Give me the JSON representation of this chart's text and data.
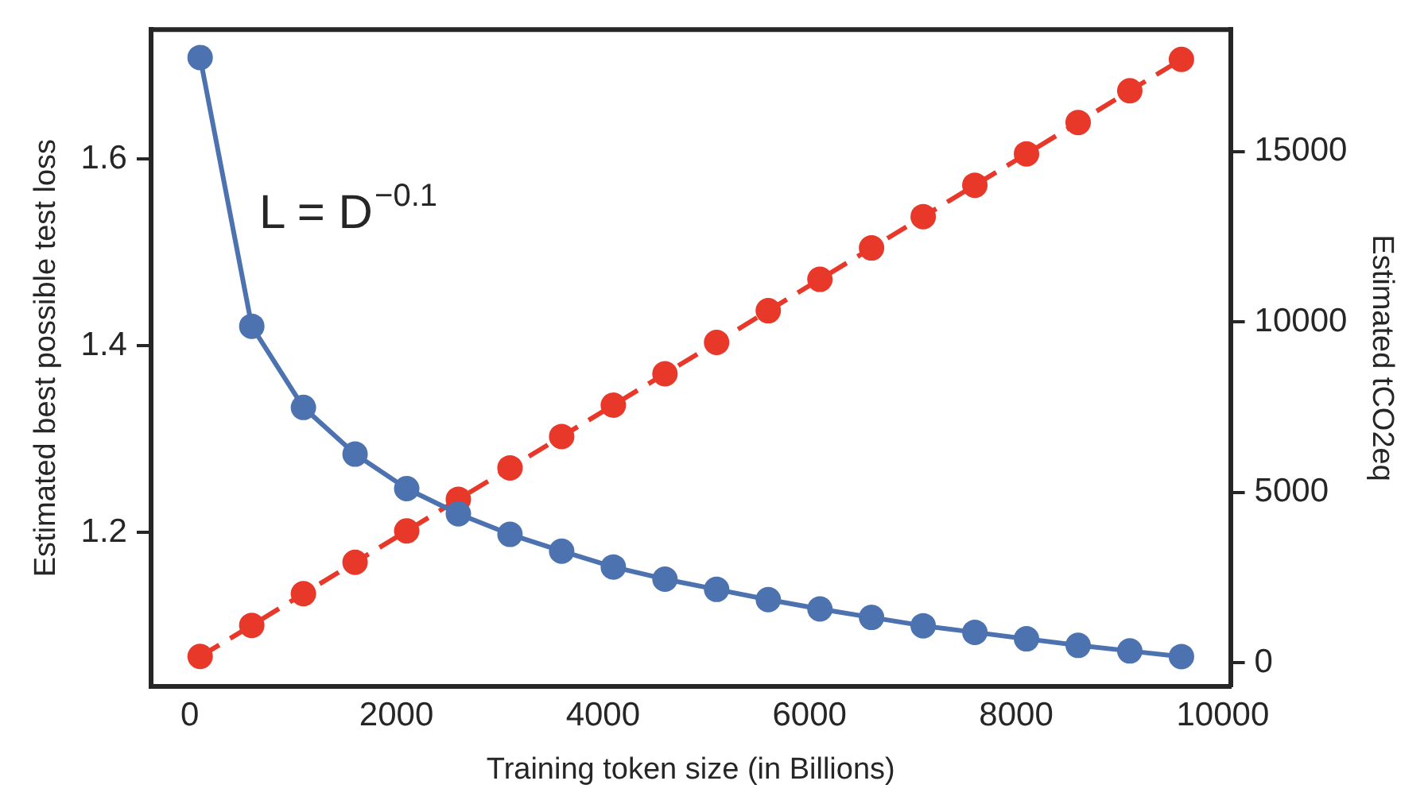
{
  "chart_data": {
    "type": "line",
    "xlabel": "Training token size (in Billions)",
    "ylabel": "Estimated best possible test loss",
    "y2label": "Estimated tCO2eq",
    "x": [
      100,
      600,
      1100,
      1600,
      2100,
      2600,
      3100,
      3600,
      4100,
      4600,
      5100,
      5600,
      6100,
      6600,
      7100,
      7600,
      8100,
      8600,
      9100,
      9600
    ],
    "series": [
      {
        "color": "#4c72b0",
        "line_style": "solid",
        "values": [
          1.709,
          1.421,
          1.334,
          1.284,
          1.247,
          1.22,
          1.198,
          1.18,
          1.163,
          1.15,
          1.139,
          1.128,
          1.118,
          1.109,
          1.1,
          1.093,
          1.086,
          1.079,
          1.073,
          1.067
        ]
      },
      {
        "color": "#e8382a",
        "line_style": "dashed",
        "axis": "y2",
        "values": [
          190,
          1100,
          2030,
          2950,
          3870,
          4800,
          5720,
          6640,
          7560,
          8480,
          9400,
          10330,
          11250,
          12170,
          13090,
          14010,
          14930,
          15850,
          16780,
          17700
        ]
      }
    ],
    "xlim": [
      -375,
      10075
    ],
    "xticks": [
      0,
      2000,
      4000,
      6000,
      8000,
      10000
    ],
    "ylim": [
      1.035,
      1.739
    ],
    "yticks": [
      1.2,
      1.4,
      1.6
    ],
    "y2lim": [
      -690,
      18576
    ],
    "y2ticks": [
      0,
      5000,
      10000,
      15000
    ],
    "annotations": [
      "L = D$^{−0.1}$"
    ],
    "marker": "circle",
    "grid": false,
    "legend": false
  }
}
